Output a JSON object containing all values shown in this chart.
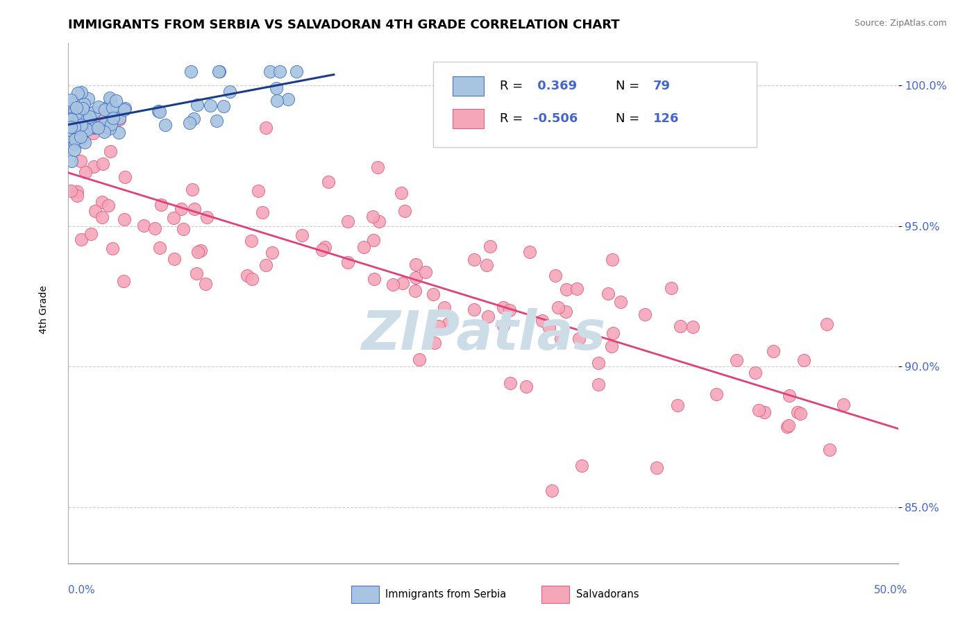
{
  "title": "IMMIGRANTS FROM SERBIA VS SALVADORAN 4TH GRADE CORRELATION CHART",
  "source_text": "Source: ZipAtlas.com",
  "ylabel": "4th Grade",
  "yticks": [
    85.0,
    90.0,
    95.0,
    100.0
  ],
  "ytick_labels": [
    "85.0%",
    "90.0%",
    "95.0%",
    "100.0%"
  ],
  "xrange": [
    0.0,
    50.0
  ],
  "yrange": [
    83.0,
    101.5
  ],
  "serbia_R": 0.369,
  "serbia_N": 79,
  "salvadoran_R": -0.506,
  "salvadoran_N": 126,
  "serbia_color": "#a8c4e0",
  "serbia_edge_color": "#4472c4",
  "salvadoran_color": "#f4a7b9",
  "salvadoran_edge_color": "#e06080",
  "trend_serbia_color": "#1a3a8a",
  "trend_salvadoran_color": "#e0407a",
  "watermark_text": "ZIPatlas",
  "watermark_color": "#ccdde8",
  "background_color": "#ffffff",
  "grid_color": "#cccccc",
  "tick_label_color": "#4466cc",
  "legend_border_color": "#cccccc"
}
